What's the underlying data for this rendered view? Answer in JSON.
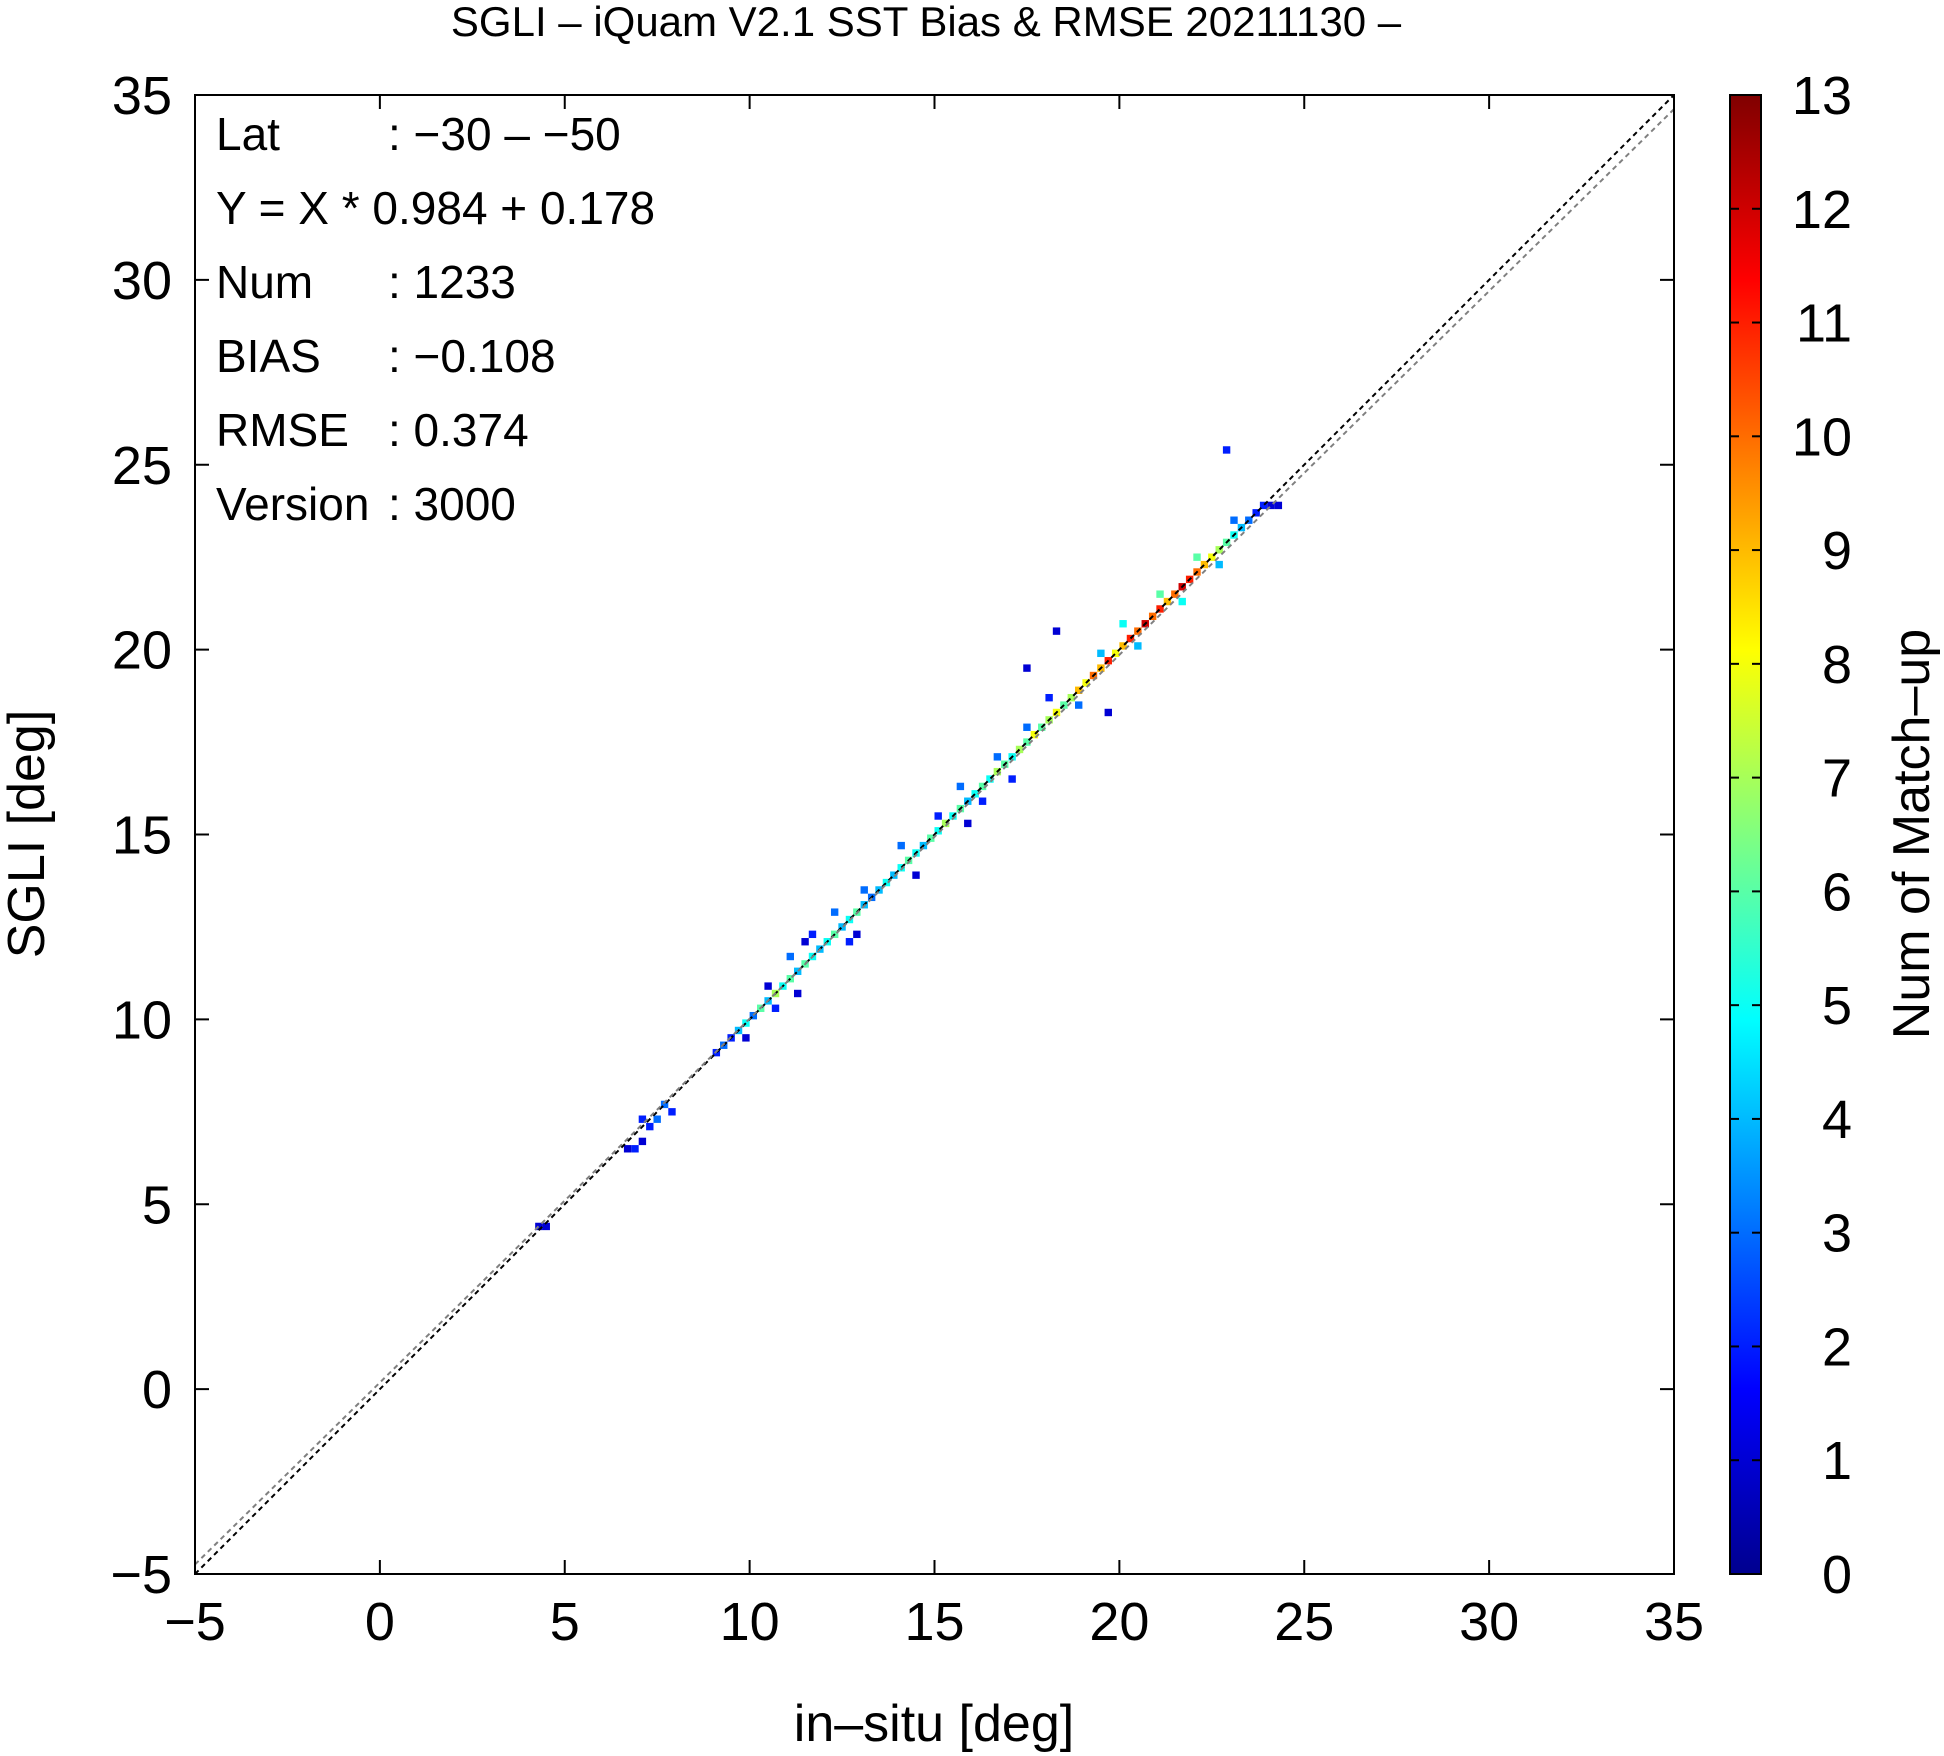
{
  "chart_data": {
    "type": "heatmap",
    "title": "SGLI – iQuam V2.1 SST Bias & RMSE 20211130 –",
    "xlabel": "in–situ [deg]",
    "ylabel": "SGLI [deg]",
    "colorbar_label": "Num of Match–up",
    "xlim": [
      -5,
      35
    ],
    "ylim": [
      -5,
      35
    ],
    "x_ticks": [
      -5,
      0,
      5,
      10,
      15,
      20,
      25,
      30,
      35
    ],
    "y_ticks": [
      -5,
      0,
      5,
      10,
      15,
      20,
      25,
      30,
      35
    ],
    "x_tick_labels": [
      "−5",
      "0",
      "5",
      "10",
      "15",
      "20",
      "25",
      "30",
      "35"
    ],
    "y_tick_labels": [
      "−5",
      "0",
      "5",
      "10",
      "15",
      "20",
      "25",
      "30",
      "35"
    ],
    "colorbar_range": [
      0,
      13
    ],
    "colorbar_ticks": [
      "0",
      "1",
      "2",
      "3",
      "4",
      "5",
      "6",
      "7",
      "8",
      "9",
      "10",
      "11",
      "12",
      "13"
    ],
    "colormap": [
      "#00008f",
      "#0000ff",
      "#0080ff",
      "#00ffff",
      "#80ff80",
      "#ffff00",
      "#ff8000",
      "#ff0000",
      "#800000"
    ],
    "lines": [
      {
        "kind": "one-to-one",
        "slope": 1,
        "intercept": 0,
        "style": "dashed",
        "color": "#000000"
      },
      {
        "kind": "regression",
        "slope": 0.984,
        "intercept": 0.178,
        "style": "dashed",
        "color": "#808080"
      }
    ],
    "stats": [
      {
        "key": "Lat",
        "value": ": −30 – −50"
      },
      {
        "key": "Y = X * 0.984 + 0.178",
        "value": ""
      },
      {
        "key": "Num",
        "value": ": 1233"
      },
      {
        "key": "BIAS",
        "value": ": −0.108"
      },
      {
        "key": "RMSE",
        "value": ": 0.374"
      },
      {
        "key": "Version",
        "value": ": 3000"
      }
    ],
    "cell_size": 0.2,
    "cells": [
      [
        4.2,
        4.3,
        1
      ],
      [
        4.4,
        4.3,
        1
      ],
      [
        6.6,
        6.4,
        1
      ],
      [
        6.8,
        6.4,
        2
      ],
      [
        7.0,
        6.6,
        1
      ],
      [
        7.0,
        7.2,
        2
      ],
      [
        7.2,
        7.0,
        2
      ],
      [
        7.4,
        7.2,
        3
      ],
      [
        7.6,
        7.6,
        3
      ],
      [
        7.8,
        7.4,
        2
      ],
      [
        9.0,
        9.0,
        2
      ],
      [
        9.2,
        9.2,
        3
      ],
      [
        9.4,
        9.4,
        2
      ],
      [
        9.6,
        9.6,
        4
      ],
      [
        9.8,
        9.8,
        5
      ],
      [
        9.8,
        9.4,
        1
      ],
      [
        10.0,
        10.0,
        3
      ],
      [
        10.2,
        10.2,
        6
      ],
      [
        10.4,
        10.4,
        4
      ],
      [
        10.4,
        10.8,
        1
      ],
      [
        10.6,
        10.6,
        7
      ],
      [
        10.6,
        10.2,
        2
      ],
      [
        10.8,
        10.8,
        5
      ],
      [
        11.0,
        11.0,
        6
      ],
      [
        11.0,
        11.6,
        3
      ],
      [
        11.2,
        11.2,
        4
      ],
      [
        11.2,
        10.6,
        1
      ],
      [
        11.4,
        11.4,
        6
      ],
      [
        11.6,
        11.6,
        5
      ],
      [
        11.6,
        12.2,
        2
      ],
      [
        11.8,
        11.8,
        4
      ],
      [
        12.0,
        12.0,
        5
      ],
      [
        12.2,
        12.2,
        6
      ],
      [
        12.2,
        12.8,
        3
      ],
      [
        12.4,
        12.4,
        4
      ],
      [
        12.6,
        12.6,
        5
      ],
      [
        12.6,
        12.0,
        2
      ],
      [
        12.8,
        12.8,
        6
      ],
      [
        13.0,
        13.0,
        4
      ],
      [
        13.0,
        13.4,
        3
      ],
      [
        13.2,
        13.2,
        3
      ],
      [
        13.4,
        13.4,
        4
      ],
      [
        13.6,
        13.6,
        5
      ],
      [
        13.8,
        13.8,
        4
      ],
      [
        14.0,
        14.0,
        5
      ],
      [
        14.0,
        14.6,
        3
      ],
      [
        14.2,
        14.2,
        6
      ],
      [
        14.4,
        14.4,
        5
      ],
      [
        14.6,
        14.6,
        4
      ],
      [
        14.8,
        14.8,
        6
      ],
      [
        15.0,
        15.0,
        5
      ],
      [
        15.0,
        15.4,
        2
      ],
      [
        15.2,
        15.2,
        7
      ],
      [
        15.4,
        15.4,
        5
      ],
      [
        15.6,
        15.6,
        6
      ],
      [
        15.6,
        16.2,
        3
      ],
      [
        15.8,
        15.8,
        4
      ],
      [
        15.8,
        15.2,
        1
      ],
      [
        16.0,
        16.0,
        5
      ],
      [
        16.2,
        16.2,
        6
      ],
      [
        16.2,
        15.8,
        2
      ],
      [
        16.4,
        16.4,
        5
      ],
      [
        16.6,
        16.6,
        7
      ],
      [
        16.6,
        17.0,
        3
      ],
      [
        16.8,
        16.8,
        6
      ],
      [
        17.0,
        17.0,
        5
      ],
      [
        17.0,
        16.4,
        2
      ],
      [
        17.2,
        17.2,
        7
      ],
      [
        17.4,
        17.4,
        6
      ],
      [
        17.4,
        17.8,
        3
      ],
      [
        17.6,
        17.6,
        8
      ],
      [
        17.8,
        17.8,
        6
      ],
      [
        18.0,
        18.0,
        7
      ],
      [
        18.0,
        18.6,
        2
      ],
      [
        18.2,
        18.2,
        8
      ],
      [
        18.4,
        18.4,
        6
      ],
      [
        18.6,
        18.6,
        7
      ],
      [
        18.8,
        18.8,
        9
      ],
      [
        18.8,
        18.4,
        3
      ],
      [
        19.0,
        19.0,
        8
      ],
      [
        19.2,
        19.2,
        10
      ],
      [
        19.4,
        19.4,
        9
      ],
      [
        19.4,
        19.8,
        4
      ],
      [
        19.6,
        19.6,
        11
      ],
      [
        19.8,
        19.8,
        8
      ],
      [
        20.0,
        20.0,
        9
      ],
      [
        20.0,
        20.6,
        5
      ],
      [
        20.2,
        20.2,
        11
      ],
      [
        20.4,
        20.4,
        10
      ],
      [
        20.4,
        20.0,
        4
      ],
      [
        20.6,
        20.6,
        12
      ],
      [
        20.8,
        20.8,
        10
      ],
      [
        21.0,
        21.0,
        11
      ],
      [
        21.0,
        21.4,
        6
      ],
      [
        21.2,
        21.2,
        9
      ],
      [
        21.4,
        21.4,
        10
      ],
      [
        21.6,
        21.6,
        12
      ],
      [
        21.6,
        21.2,
        5
      ],
      [
        21.8,
        21.8,
        11
      ],
      [
        22.0,
        22.0,
        10
      ],
      [
        22.0,
        22.4,
        6
      ],
      [
        22.2,
        22.2,
        9
      ],
      [
        22.4,
        22.4,
        8
      ],
      [
        22.6,
        22.6,
        7
      ],
      [
        22.6,
        22.2,
        4
      ],
      [
        22.8,
        22.8,
        6
      ],
      [
        23.0,
        23.0,
        5
      ],
      [
        23.0,
        23.4,
        3
      ],
      [
        23.2,
        23.2,
        4
      ],
      [
        23.4,
        23.4,
        3
      ],
      [
        23.6,
        23.6,
        2
      ],
      [
        23.8,
        23.8,
        2
      ],
      [
        24.0,
        23.8,
        1
      ],
      [
        24.2,
        23.8,
        1
      ],
      [
        22.8,
        25.3,
        2
      ],
      [
        19.6,
        18.2,
        1
      ],
      [
        18.2,
        20.4,
        1
      ],
      [
        17.4,
        19.4,
        1
      ],
      [
        12.8,
        12.2,
        1
      ],
      [
        11.4,
        12.0,
        1
      ],
      [
        14.4,
        13.8,
        1
      ]
    ]
  }
}
